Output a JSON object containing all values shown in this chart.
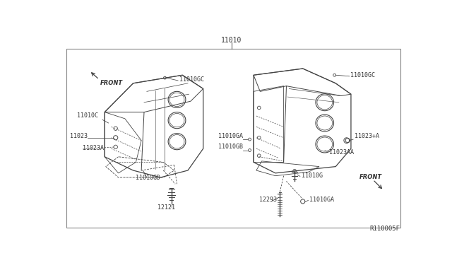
{
  "bg_color": "#ffffff",
  "border_color": "#888888",
  "line_color": "#444444",
  "text_color": "#333333",
  "ref_code": "R110005F",
  "labels": {
    "top_center": "11010",
    "left_front": "FRONT",
    "right_front": "FRONT",
    "l_11010GC": "11010GC",
    "l_11010C": "11010C",
    "l_11023": "11023",
    "l_11023A": "11023A",
    "l_11010GD": "11010GD",
    "l_12121": "12121",
    "r_11010GC": "11010GC",
    "r_11010GA": "11010GA",
    "r_11010GB": "11010GB",
    "r_11023plus": "11023+A",
    "r_11023AA": "11023AA",
    "r_11010G": "11010G",
    "r_12293": "12293",
    "r_11010GA_bot": "11010GA"
  },
  "font_size_label": 6.0,
  "font_size_title": 7.0,
  "font_size_ref": 6.5,
  "border": [
    18,
    32,
    610,
    328
  ]
}
